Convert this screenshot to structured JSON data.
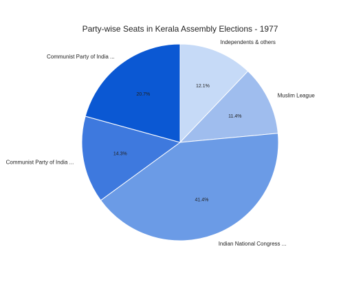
{
  "chart_data": {
    "type": "pie",
    "title": "Party-wise Seats in Kerala Assembly Elections - 1977",
    "slices": [
      {
        "label": "Independents & others",
        "value": 12.1,
        "display": "12.1%",
        "color": "#c6daf7"
      },
      {
        "label": "Muslim League",
        "value": 11.4,
        "display": "11.4%",
        "color": "#9fbdee"
      },
      {
        "label": "Indian National Congress ...",
        "value": 41.4,
        "display": "41.4%",
        "color": "#6b9be6"
      },
      {
        "label": "Communist Party of India ...",
        "value": 14.3,
        "display": "14.3%",
        "color": "#3e79de"
      },
      {
        "label": "Communist Party of India ...",
        "value": 20.7,
        "display": "20.7%",
        "color": "#0b58d3"
      }
    ],
    "start_angle_deg": 0,
    "direction": "clockwise"
  }
}
